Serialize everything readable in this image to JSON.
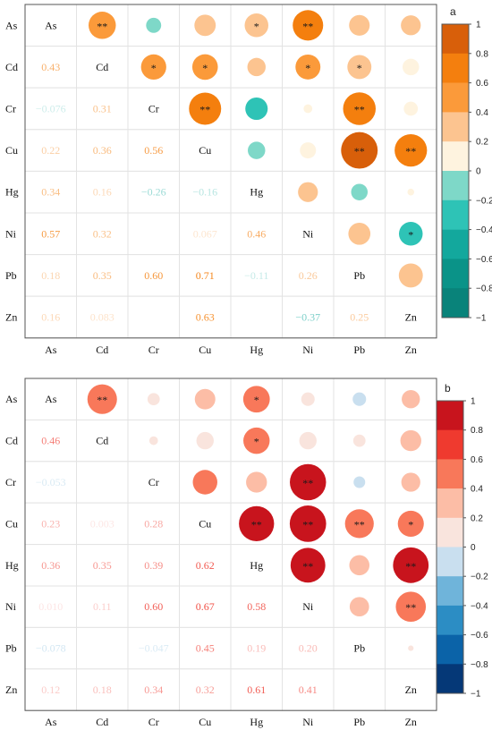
{
  "chart_data": [
    {
      "type": "heatmap",
      "panel_label": "a",
      "variables": [
        "As",
        "Cd",
        "Cr",
        "Cu",
        "Hg",
        "Ni",
        "Pb",
        "Zn"
      ],
      "lower_values": [
        [
          "",
          "",
          "",
          "",
          "",
          "",
          "",
          ""
        ],
        [
          "0.43",
          "",
          "",
          "",
          "",
          "",
          "",
          ""
        ],
        [
          "−0.076",
          "0.31",
          "",
          "",
          "",
          "",
          "",
          ""
        ],
        [
          "0.22",
          "0.36",
          "0.56",
          "",
          "",
          "",
          "",
          ""
        ],
        [
          "0.34",
          "0.16",
          "−0.26",
          "−0.16",
          "",
          "",
          "",
          ""
        ],
        [
          "0.57",
          "0.32",
          "",
          "0.067",
          "0.46",
          "",
          "",
          ""
        ],
        [
          "0.18",
          "0.35",
          "0.60",
          "0.71",
          "−0.11",
          "0.26",
          "",
          ""
        ],
        [
          "0.16",
          "0.083",
          "",
          "0.63",
          "",
          "−0.37",
          "0.25",
          ""
        ]
      ],
      "upper_values": [
        [
          null,
          0.49,
          -0.15,
          0.3,
          0.37,
          0.61,
          0.28,
          0.26
        ],
        [
          null,
          null,
          0.42,
          0.43,
          0.22,
          0.41,
          0.38,
          0.18
        ],
        [
          null,
          null,
          null,
          0.68,
          -0.33,
          0.05,
          0.7,
          0.13
        ],
        [
          null,
          null,
          null,
          null,
          -0.2,
          0.17,
          0.88,
          0.69
        ],
        [
          null,
          null,
          null,
          null,
          null,
          0.26,
          -0.18,
          0.03
        ],
        [
          null,
          null,
          null,
          null,
          null,
          null,
          0.32,
          -0.37
        ],
        [
          null,
          null,
          null,
          null,
          null,
          null,
          null,
          0.38
        ],
        [
          null,
          null,
          null,
          null,
          null,
          null,
          null,
          null
        ]
      ],
      "significance": [
        [
          "",
          "**",
          "",
          "",
          "*",
          "**",
          "",
          ""
        ],
        [
          "",
          "",
          "*",
          "*",
          "",
          "*",
          "*",
          ""
        ],
        [
          "",
          "",
          "",
          "**",
          "",
          "",
          "**",
          ""
        ],
        [
          "",
          "",
          "",
          "",
          "",
          "",
          "**",
          "**"
        ],
        [
          "",
          "",
          "",
          "",
          "",
          "",
          "",
          ""
        ],
        [
          "",
          "",
          "",
          "",
          "",
          "",
          "",
          "*"
        ],
        [
          "",
          "",
          "",
          "",
          "",
          "",
          "",
          ""
        ],
        [
          "",
          "",
          "",
          "",
          "",
          "",
          "",
          ""
        ]
      ],
      "colorbar": {
        "ticks": [
          "1",
          "0.8",
          "0.6",
          "0.4",
          "0.2",
          "0",
          "−0.2",
          "−0.4",
          "−0.6",
          "−0.8",
          "−1"
        ],
        "colors": [
          "#d85f0a",
          "#f47f0e",
          "#fb9a3a",
          "#fcc490",
          "#fef3df",
          "#7ed8c8",
          "#2ec3b6",
          "#13a89d",
          "#0a9388",
          "#09837a"
        ]
      }
    },
    {
      "type": "heatmap",
      "panel_label": "b",
      "variables": [
        "As",
        "Cd",
        "Cr",
        "Cu",
        "Hg",
        "Ni",
        "Pb",
        "Zn"
      ],
      "lower_values": [
        [
          "",
          "",
          "",
          "",
          "",
          "",
          "",
          ""
        ],
        [
          "0.46",
          "",
          "",
          "",
          "",
          "",
          "",
          ""
        ],
        [
          "−0.053",
          "",
          "",
          "",
          "",
          "",
          "",
          ""
        ],
        [
          "0.23",
          "0.003",
          "0.28",
          "",
          "",
          "",
          "",
          ""
        ],
        [
          "0.36",
          "0.35",
          "0.39",
          "0.62",
          "",
          "",
          "",
          ""
        ],
        [
          "0.010",
          "0.11",
          "0.60",
          "0.67",
          "0.58",
          "",
          "",
          ""
        ],
        [
          "−0.078",
          "",
          "−0.047",
          "0.45",
          "0.19",
          "0.20",
          "",
          ""
        ],
        [
          "0.12",
          "0.18",
          "0.34",
          "0.32",
          "0.61",
          "0.41",
          "",
          ""
        ]
      ],
      "upper_values": [
        [
          null,
          0.58,
          0.1,
          0.28,
          0.47,
          0.12,
          -0.12,
          0.22
        ],
        [
          null,
          null,
          0.05,
          0.2,
          0.46,
          0.2,
          0.1,
          0.29
        ],
        [
          null,
          null,
          null,
          0.4,
          0.29,
          0.87,
          -0.09,
          0.24
        ],
        [
          null,
          null,
          null,
          null,
          0.82,
          0.88,
          0.55,
          0.45
        ],
        [
          null,
          null,
          null,
          null,
          null,
          0.8,
          0.27,
          0.84
        ],
        [
          null,
          null,
          null,
          null,
          null,
          null,
          0.25,
          0.6
        ],
        [
          null,
          null,
          null,
          null,
          null,
          null,
          null,
          0.02
        ],
        [
          null,
          null,
          null,
          null,
          null,
          null,
          null,
          null
        ]
      ],
      "significance": [
        [
          "",
          "**",
          "",
          "",
          "*",
          "",
          "",
          ""
        ],
        [
          "",
          "",
          "",
          "",
          "*",
          "",
          "",
          ""
        ],
        [
          "",
          "",
          "",
          "",
          "",
          "**",
          "",
          ""
        ],
        [
          "",
          "",
          "",
          "",
          "**",
          "**",
          "**",
          "*"
        ],
        [
          "",
          "",
          "",
          "",
          "",
          "**",
          "",
          "**"
        ],
        [
          "",
          "",
          "",
          "",
          "",
          "",
          "",
          "**"
        ],
        [
          "",
          "",
          "",
          "",
          "",
          "",
          "",
          ""
        ],
        [
          "",
          "",
          "",
          "",
          "",
          "",
          "",
          ""
        ]
      ],
      "colorbar": {
        "ticks": [
          "1",
          "0.8",
          "0.6",
          "0.4",
          "0.2",
          "0",
          "−0.2",
          "−0.4",
          "−0.6",
          "−0.8",
          "−1"
        ],
        "colors": [
          "#c8141d",
          "#ef3a2f",
          "#f8785a",
          "#fcbda6",
          "#f9e4dd",
          "#c9dfef",
          "#6fb4da",
          "#2c8dc4",
          "#0b63a8",
          "#053877"
        ]
      }
    }
  ]
}
